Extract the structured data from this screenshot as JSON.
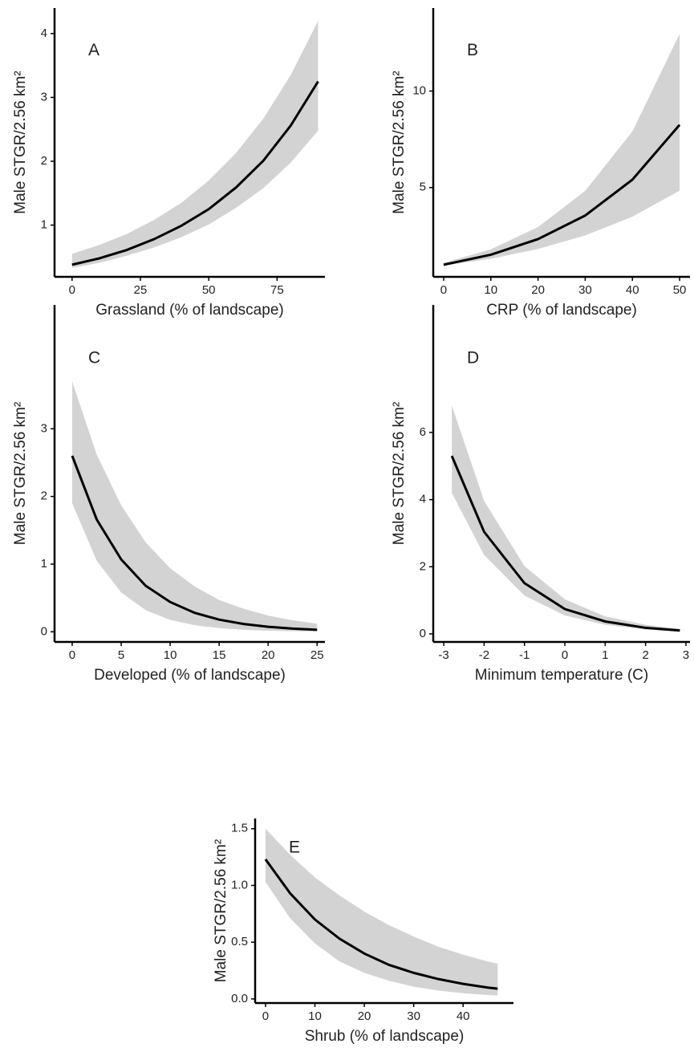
{
  "chart_data": [
    {
      "type": "line",
      "panel_label": "A",
      "x_label": "Grassland (% of landscape)",
      "y_label": "Male STGR/2.56 km²",
      "x": [
        0,
        10,
        20,
        30,
        40,
        50,
        60,
        70,
        80,
        90
      ],
      "values": [
        0.38,
        0.48,
        0.61,
        0.78,
        0.99,
        1.25,
        1.59,
        2.01,
        2.56,
        3.25
      ],
      "lower": [
        0.33,
        0.41,
        0.52,
        0.65,
        0.81,
        1.01,
        1.27,
        1.58,
        1.98,
        2.48
      ],
      "upper": [
        0.55,
        0.69,
        0.86,
        1.08,
        1.35,
        1.7,
        2.13,
        2.67,
        3.35,
        4.2
      ],
      "color": "#000000",
      "band_color": "#d3d3d3",
      "xlim": [
        -6.4,
        92.5
      ],
      "xticks": [
        0,
        25,
        50,
        75
      ],
      "ylim": [
        0.19,
        4.4
      ],
      "yticks": [
        1,
        2,
        3,
        4
      ]
    },
    {
      "type": "line",
      "panel_label": "B",
      "x_label": "CRP (% of landscape)",
      "y_label": "Male STGR/2.56 km²",
      "x": [
        0,
        10,
        20,
        30,
        40,
        50
      ],
      "values": [
        1.0,
        1.52,
        2.33,
        3.55,
        5.41,
        8.25
      ],
      "lower": [
        0.95,
        1.31,
        1.82,
        2.52,
        3.49,
        4.84
      ],
      "upper": [
        1.1,
        1.8,
        2.95,
        4.83,
        7.91,
        12.96
      ],
      "color": "#000000",
      "band_color": "#d3d3d3",
      "xlim": [
        -2.2,
        52.2
      ],
      "xticks": [
        0,
        10,
        20,
        30,
        40,
        50
      ],
      "ylim": [
        0.375,
        14.3
      ],
      "yticks": [
        5,
        10
      ]
    },
    {
      "type": "line",
      "panel_label": "C",
      "x_label": "Developed (% of landscape)",
      "y_label": "Male STGR/2.56 km²",
      "x": [
        0,
        2.5,
        5,
        7.5,
        10,
        12.5,
        15,
        17.5,
        20,
        22.5,
        25
      ],
      "values": [
        2.6,
        1.66,
        1.07,
        0.68,
        0.44,
        0.28,
        0.18,
        0.115,
        0.074,
        0.047,
        0.03
      ],
      "lower": [
        1.9,
        1.05,
        0.58,
        0.32,
        0.176,
        0.097,
        0.054,
        0.03,
        0.016,
        0.009,
        0.005
      ],
      "upper": [
        3.7,
        2.62,
        1.87,
        1.32,
        0.94,
        0.67,
        0.47,
        0.34,
        0.24,
        0.17,
        0.12
      ],
      "color": "#000000",
      "band_color": "#d3d3d3",
      "xlim": [
        -1.8,
        25.8
      ],
      "xticks": [
        0,
        5,
        10,
        15,
        20,
        25
      ],
      "ylim": [
        -0.15,
        4.83
      ],
      "yticks": [
        0,
        1,
        2,
        3
      ]
    },
    {
      "type": "line",
      "panel_label": "D",
      "x_label": "Minimum temperature (C)",
      "y_label": "Male STGR/2.56 km²",
      "x": [
        -2.8,
        -2,
        -1,
        0,
        1,
        2,
        2.85
      ],
      "values": [
        5.3,
        3.04,
        1.51,
        0.74,
        0.37,
        0.18,
        0.1
      ],
      "lower": [
        4.2,
        2.35,
        1.14,
        0.55,
        0.27,
        0.13,
        0.07
      ],
      "upper": [
        6.8,
        3.96,
        2.02,
        1.03,
        0.52,
        0.27,
        0.15
      ],
      "color": "#000000",
      "band_color": "#d3d3d3",
      "xlim": [
        -3.26,
        3.1
      ],
      "xticks": [
        -3,
        -2,
        -1,
        0,
        1,
        2,
        3
      ],
      "ylim": [
        -0.24,
        9.8
      ],
      "yticks": [
        0,
        2,
        4,
        6
      ]
    },
    {
      "type": "line",
      "panel_label": "E",
      "x_label": "Shrub (% of landscape)",
      "y_label": "Male STGR/2.56 km²",
      "x": [
        0,
        5,
        10,
        15,
        20,
        25,
        30,
        35,
        40,
        45,
        47
      ],
      "values": [
        1.23,
        0.93,
        0.7,
        0.53,
        0.4,
        0.3,
        0.23,
        0.175,
        0.133,
        0.1,
        0.09
      ],
      "lower": [
        1.03,
        0.71,
        0.49,
        0.33,
        0.23,
        0.16,
        0.108,
        0.074,
        0.051,
        0.035,
        0.03
      ],
      "upper": [
        1.5,
        1.27,
        1.07,
        0.91,
        0.77,
        0.65,
        0.55,
        0.46,
        0.39,
        0.33,
        0.31
      ],
      "color": "#000000",
      "band_color": "#d3d3d3",
      "xlim": [
        -2.1,
        50.2
      ],
      "xticks": [
        0,
        10,
        20,
        30,
        40
      ],
      "ylim": [
        -0.036,
        1.59
      ],
      "yticks": [
        {
          "value": 0,
          "label": "0.0"
        },
        {
          "value": 0.5,
          "label": "0.5"
        },
        {
          "value": 1,
          "label": "1.0"
        },
        {
          "value": 1.5,
          "label": "1.5"
        }
      ]
    }
  ]
}
